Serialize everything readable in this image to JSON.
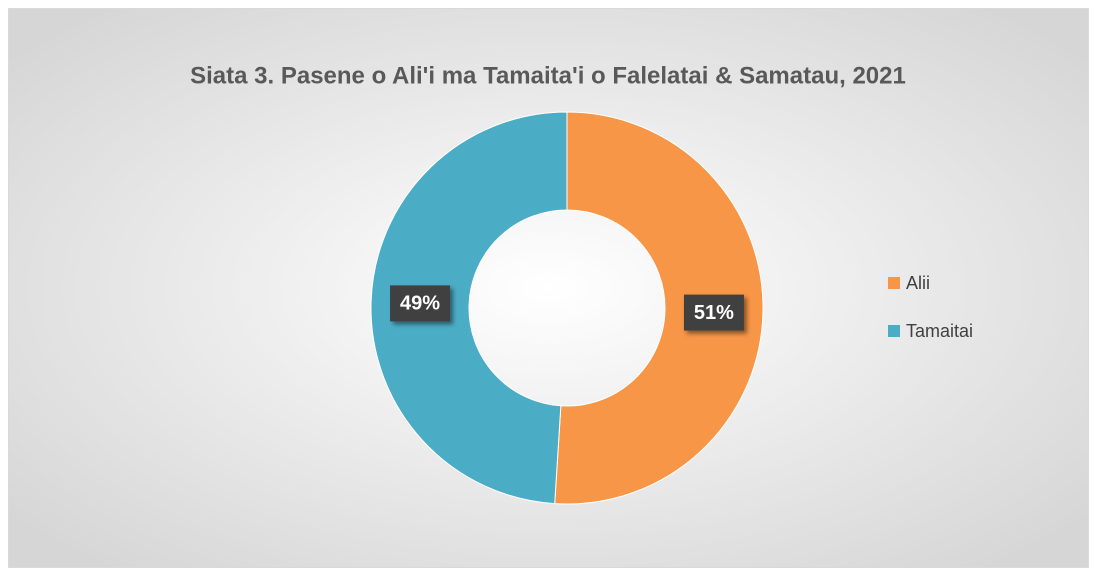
{
  "chart_data": {
    "type": "pie",
    "title": "Siata 3. Pasene o Ali'i ma Tamaita'i o Falelatai & Samatau, 2021",
    "categories": [
      "Alii",
      "Tamaitai"
    ],
    "values": [
      51,
      49
    ],
    "value_labels": [
      "51%",
      "49%"
    ],
    "colors": [
      "#f79646",
      "#4bacc6"
    ],
    "donut": true,
    "legend": "right"
  }
}
